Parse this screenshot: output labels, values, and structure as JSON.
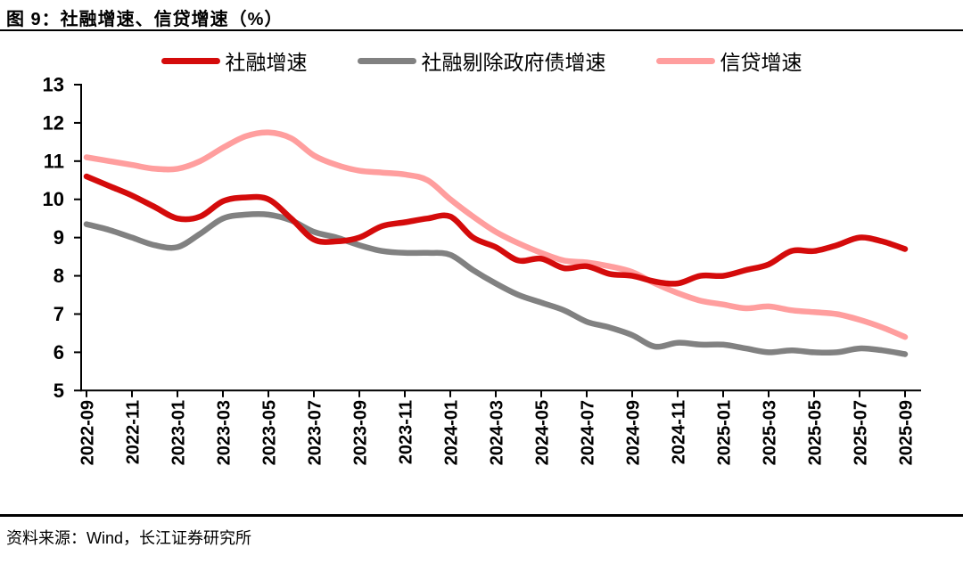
{
  "header": {
    "title": "图 9：社融增速、信贷增速（%）"
  },
  "legend": [
    {
      "label": "社融增速",
      "color": "#d40b0b"
    },
    {
      "label": "社融剔除政府债增速",
      "color": "#818181"
    },
    {
      "label": "信贷增速",
      "color": "#ff9e9e"
    }
  ],
  "footer": {
    "source": "资料来源：Wind，长江证券研究所"
  },
  "chart_data": {
    "type": "line",
    "title": "图 9：社融增速、信贷增速（%）",
    "x": [
      "2022-09",
      "2022-10",
      "2022-11",
      "2022-12",
      "2023-01",
      "2023-02",
      "2023-03",
      "2023-04",
      "2023-05",
      "2023-06",
      "2023-07",
      "2023-08",
      "2023-09",
      "2023-10",
      "2023-11",
      "2023-12",
      "2024-01",
      "2024-02",
      "2024-03",
      "2024-04",
      "2024-05",
      "2024-06",
      "2024-07",
      "2024-08",
      "2024-09",
      "2024-10",
      "2024-11",
      "2024-12",
      "2025-01",
      "2025-02",
      "2025-03",
      "2025-04",
      "2025-05",
      "2025-06",
      "2025-07",
      "2025-08",
      "2025-09"
    ],
    "x_tick_every": 2,
    "x_tick_labels": [
      "2022-09",
      "2022-11",
      "2023-01",
      "2023-03",
      "2023-05",
      "2023-07",
      "2023-09",
      "2023-11",
      "2024-01",
      "2024-03",
      "2024-05",
      "2024-07",
      "2024-09",
      "2024-11",
      "2025-01",
      "2025-03",
      "2025-05",
      "2025-07",
      "2025-09"
    ],
    "series": [
      {
        "name": "社融增速",
        "color": "#d40b0b",
        "values": [
          10.6,
          10.35,
          10.1,
          9.8,
          9.5,
          9.55,
          9.95,
          10.05,
          10.0,
          9.5,
          8.95,
          8.9,
          9.0,
          9.3,
          9.4,
          9.5,
          9.55,
          9.0,
          8.75,
          8.4,
          8.45,
          8.2,
          8.25,
          8.05,
          8.0,
          7.85,
          7.8,
          8.0,
          8.0,
          8.15,
          8.3,
          8.65,
          8.65,
          8.8,
          9.0,
          8.9,
          8.7
        ]
      },
      {
        "name": "社融剔除政府债增速",
        "color": "#818181",
        "values": [
          9.35,
          9.2,
          9.0,
          8.8,
          8.75,
          9.1,
          9.5,
          9.6,
          9.6,
          9.45,
          9.15,
          9.0,
          8.8,
          8.65,
          8.6,
          8.6,
          8.55,
          8.15,
          7.8,
          7.5,
          7.3,
          7.1,
          6.8,
          6.65,
          6.45,
          6.15,
          6.25,
          6.2,
          6.2,
          6.1,
          6.0,
          6.05,
          6.0,
          6.0,
          6.1,
          6.05,
          5.95
        ]
      },
      {
        "name": "信贷增速",
        "color": "#ff9e9e",
        "values": [
          11.1,
          11.0,
          10.9,
          10.8,
          10.8,
          11.0,
          11.35,
          11.65,
          11.75,
          11.6,
          11.15,
          10.9,
          10.75,
          10.7,
          10.65,
          10.5,
          10.0,
          9.55,
          9.15,
          8.85,
          8.6,
          8.4,
          8.35,
          8.25,
          8.1,
          7.8,
          7.55,
          7.35,
          7.25,
          7.15,
          7.2,
          7.1,
          7.05,
          7.0,
          6.85,
          6.65,
          6.4
        ]
      }
    ],
    "ylim": [
      5,
      13
    ],
    "y_ticks": [
      5,
      6,
      7,
      8,
      9,
      10,
      11,
      12,
      13
    ],
    "grid": false,
    "legend_position": "top"
  }
}
